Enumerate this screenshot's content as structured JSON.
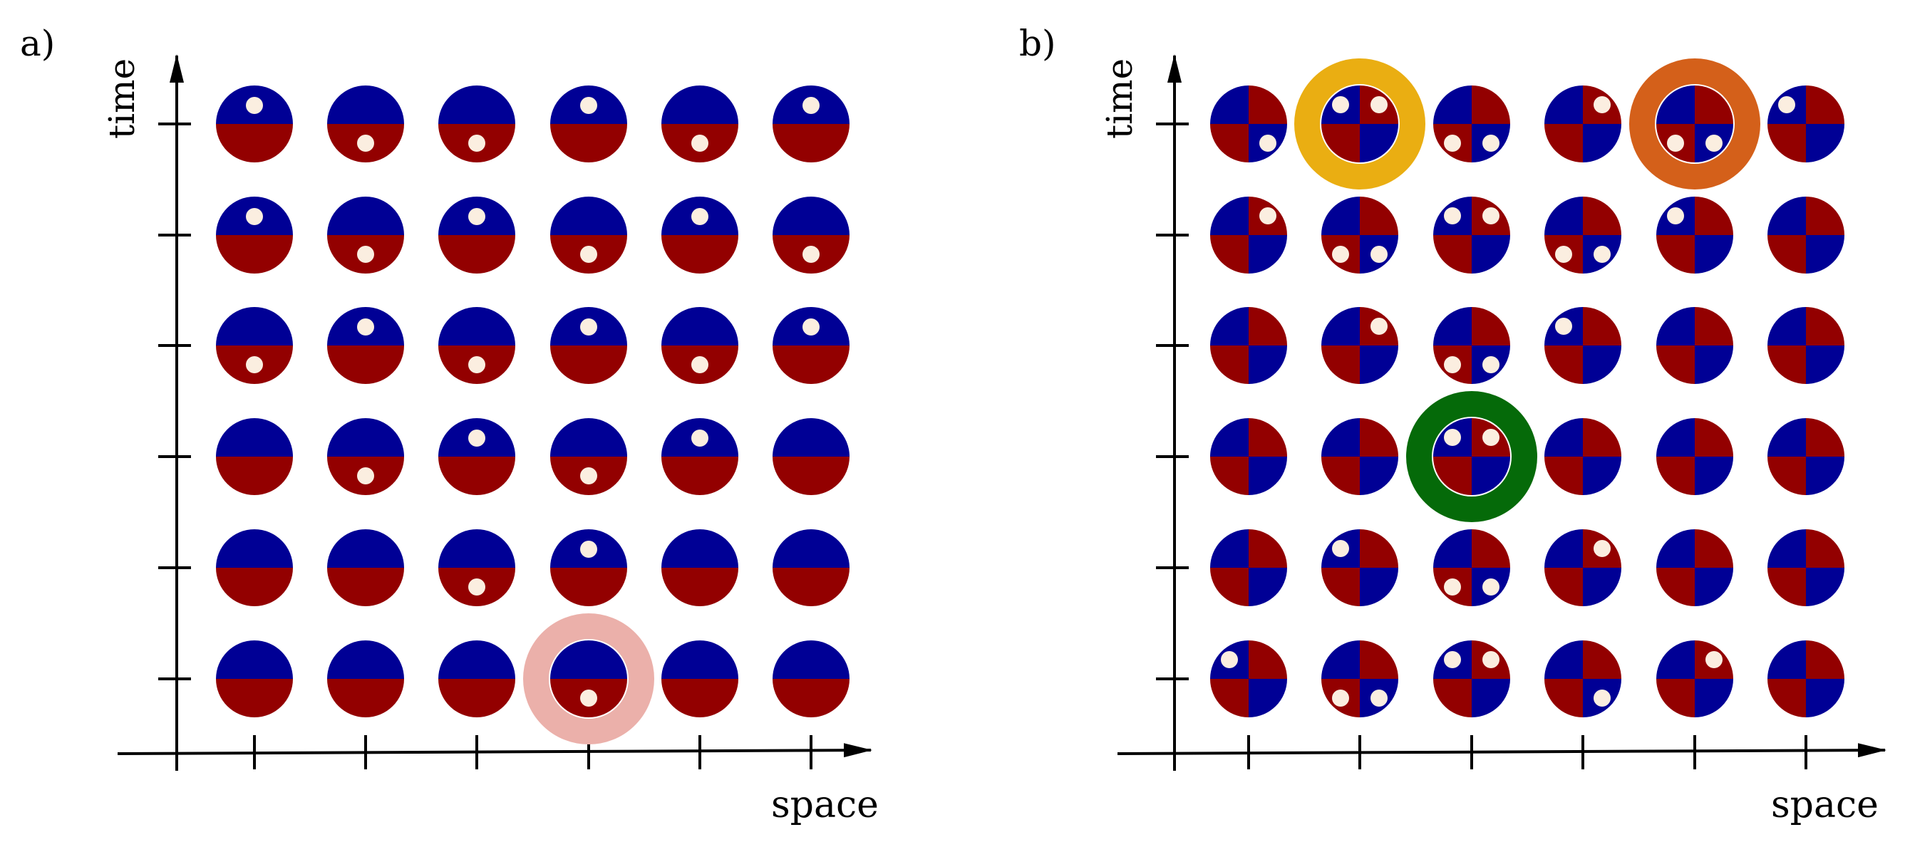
{
  "colors": {
    "blue": "#000095",
    "red": "#930000",
    "dot": "#fbeee0",
    "axis": "#000000",
    "ring_pink": "#ebb0aa",
    "ring_yellow": "#eaae12",
    "ring_orange": "#d4601a",
    "ring_green": "#056a09"
  },
  "panel_a": {
    "label": "a)",
    "ylabel": "time",
    "xlabel": "space",
    "rows": [
      {
        "dots": [
          "B",
          "R",
          "R",
          "B",
          "R",
          "B"
        ]
      },
      {
        "dots": [
          "B",
          "R",
          "B",
          "R",
          "B",
          "R"
        ]
      },
      {
        "dots": [
          "R",
          "B",
          "R",
          "B",
          "R",
          "B"
        ]
      },
      {
        "dots": [
          "",
          "R",
          "B",
          "R",
          "B",
          ""
        ]
      },
      {
        "dots": [
          "",
          "",
          "R",
          "B",
          "",
          ""
        ]
      },
      {
        "dots": [
          "",
          "",
          "",
          "R",
          "",
          ""
        ]
      }
    ],
    "highlights": [
      {
        "row": 5,
        "col": 3,
        "color": "ring_pink"
      }
    ]
  },
  "panel_b": {
    "label": "b)",
    "ylabel": "time",
    "xlabel": "space",
    "rows": [
      {
        "cells": [
          {
            "colors": [
              "B",
              "R",
              "R",
              "B"
            ],
            "dots": [
              "BR"
            ]
          },
          {
            "colors": [
              "B",
              "R",
              "R",
              "B"
            ],
            "dots": [
              "TL",
              "TR"
            ]
          },
          {
            "colors": [
              "B",
              "R",
              "R",
              "B"
            ],
            "dots": [
              "BL",
              "BR"
            ]
          },
          {
            "colors": [
              "B",
              "R",
              "R",
              "B"
            ],
            "dots": [
              "TR"
            ]
          },
          {
            "colors": [
              "B",
              "R",
              "R",
              "B"
            ],
            "dots": [
              "BL",
              "BR"
            ]
          },
          {
            "colors": [
              "B",
              "R",
              "R",
              "B"
            ],
            "dots": [
              "TL"
            ]
          }
        ]
      },
      {
        "cells": [
          {
            "colors": [
              "B",
              "R",
              "R",
              "B"
            ],
            "dots": [
              "TR"
            ]
          },
          {
            "colors": [
              "B",
              "R",
              "R",
              "B"
            ],
            "dots": [
              "BL",
              "BR"
            ]
          },
          {
            "colors": [
              "B",
              "R",
              "R",
              "B"
            ],
            "dots": [
              "TL",
              "TR"
            ]
          },
          {
            "colors": [
              "B",
              "R",
              "R",
              "B"
            ],
            "dots": [
              "BL",
              "BR"
            ]
          },
          {
            "colors": [
              "B",
              "R",
              "R",
              "B"
            ],
            "dots": [
              "TL"
            ]
          },
          {
            "colors": [
              "B",
              "R",
              "R",
              "B"
            ],
            "dots": []
          }
        ]
      },
      {
        "cells": [
          {
            "colors": [
              "B",
              "R",
              "R",
              "B"
            ],
            "dots": []
          },
          {
            "colors": [
              "B",
              "R",
              "R",
              "B"
            ],
            "dots": [
              "TR"
            ]
          },
          {
            "colors": [
              "B",
              "R",
              "R",
              "B"
            ],
            "dots": [
              "BL",
              "BR"
            ]
          },
          {
            "colors": [
              "B",
              "R",
              "R",
              "B"
            ],
            "dots": [
              "TL"
            ]
          },
          {
            "colors": [
              "B",
              "R",
              "R",
              "B"
            ],
            "dots": []
          },
          {
            "colors": [
              "B",
              "R",
              "R",
              "B"
            ],
            "dots": []
          }
        ]
      },
      {
        "cells": [
          {
            "colors": [
              "B",
              "R",
              "R",
              "B"
            ],
            "dots": []
          },
          {
            "colors": [
              "B",
              "R",
              "R",
              "B"
            ],
            "dots": []
          },
          {
            "colors": [
              "B",
              "R",
              "R",
              "B"
            ],
            "dots": [
              "TL",
              "TR"
            ]
          },
          {
            "colors": [
              "B",
              "R",
              "R",
              "B"
            ],
            "dots": []
          },
          {
            "colors": [
              "B",
              "R",
              "R",
              "B"
            ],
            "dots": []
          },
          {
            "colors": [
              "B",
              "R",
              "R",
              "B"
            ],
            "dots": []
          }
        ]
      },
      {
        "cells": [
          {
            "colors": [
              "B",
              "R",
              "R",
              "B"
            ],
            "dots": []
          },
          {
            "colors": [
              "B",
              "R",
              "R",
              "B"
            ],
            "dots": [
              "TL"
            ]
          },
          {
            "colors": [
              "B",
              "R",
              "R",
              "B"
            ],
            "dots": [
              "BL",
              "BR"
            ]
          },
          {
            "colors": [
              "B",
              "R",
              "R",
              "B"
            ],
            "dots": [
              "TR"
            ]
          },
          {
            "colors": [
              "B",
              "R",
              "R",
              "B"
            ],
            "dots": []
          },
          {
            "colors": [
              "B",
              "R",
              "R",
              "B"
            ],
            "dots": []
          }
        ]
      },
      {
        "cells": [
          {
            "colors": [
              "B",
              "R",
              "R",
              "B"
            ],
            "dots": [
              "TL"
            ]
          },
          {
            "colors": [
              "B",
              "R",
              "R",
              "B"
            ],
            "dots": [
              "BL",
              "BR"
            ]
          },
          {
            "colors": [
              "B",
              "R",
              "R",
              "B"
            ],
            "dots": [
              "TL",
              "TR"
            ]
          },
          {
            "colors": [
              "B",
              "R",
              "R",
              "B"
            ],
            "dots": [
              "BR"
            ]
          },
          {
            "colors": [
              "B",
              "R",
              "R",
              "B"
            ],
            "dots": [
              "TR"
            ]
          },
          {
            "colors": [
              "B",
              "R",
              "R",
              "B"
            ],
            "dots": []
          }
        ]
      }
    ],
    "highlights": [
      {
        "row": 0,
        "col": 1,
        "color": "ring_yellow"
      },
      {
        "row": 0,
        "col": 4,
        "color": "ring_orange"
      },
      {
        "row": 3,
        "col": 2,
        "color": "ring_green"
      }
    ]
  }
}
